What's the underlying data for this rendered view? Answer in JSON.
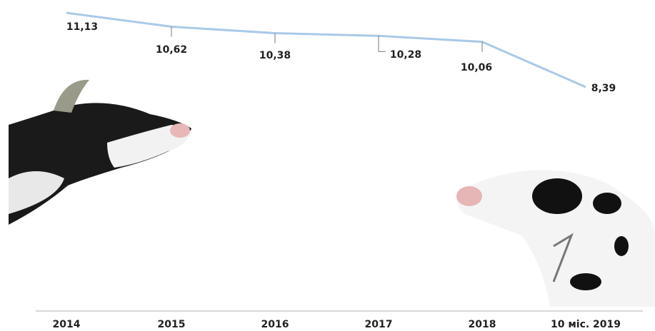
{
  "chart_data": {
    "type": "line",
    "categories": [
      "2014",
      "2015",
      "2016",
      "2017",
      "2018",
      "10 міс. 2019"
    ],
    "values": [
      11.13,
      10.62,
      10.38,
      10.28,
      10.06,
      8.39
    ],
    "value_labels": [
      "11,13",
      "10,62",
      "10,38",
      "10,28",
      "10,06",
      "8,39"
    ],
    "color": "#a9c9e8"
  }
}
